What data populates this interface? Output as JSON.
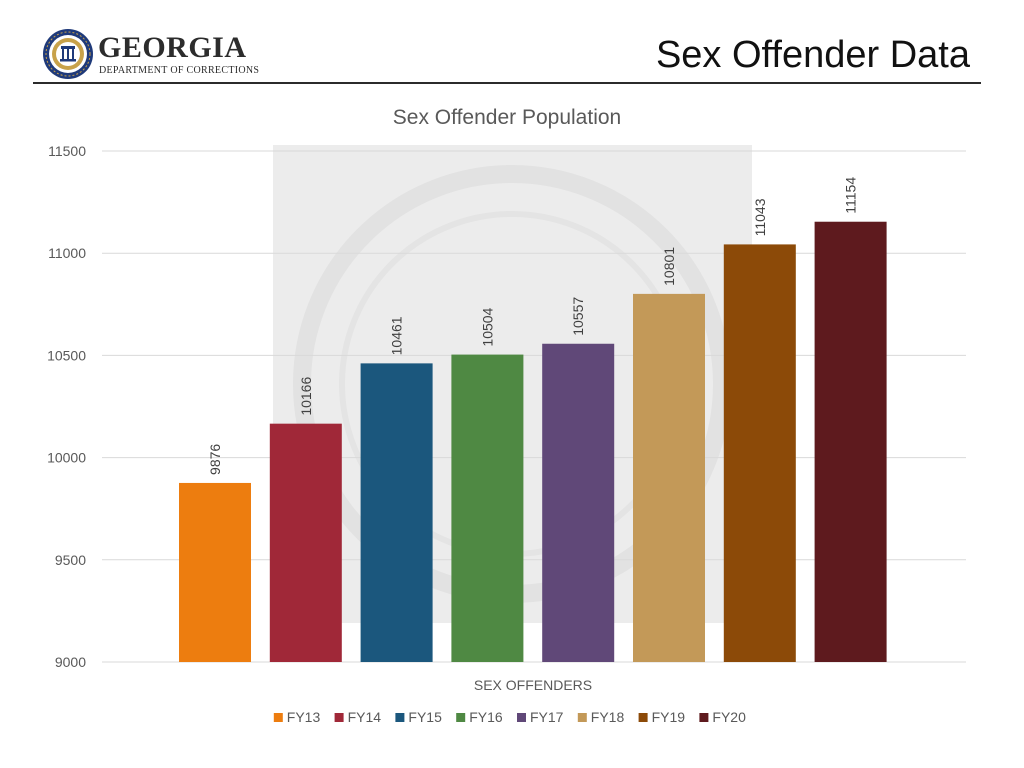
{
  "header": {
    "org_name": "GEORGIA",
    "org_subtitle": "DEPARTMENT OF CORRECTIONS",
    "page_title": "Sex Offender Data"
  },
  "chart_data": {
    "type": "bar",
    "title": "Sex Offender Population",
    "xlabel": "SEX OFFENDERS",
    "ylabel": "",
    "ylim": [
      9000,
      11500
    ],
    "yticks": [
      9000,
      9500,
      10000,
      10500,
      11000,
      11500
    ],
    "categories": [
      "SEX OFFENDERS"
    ],
    "series": [
      {
        "name": "FY13",
        "value": 9876,
        "color": "#ED7D0F"
      },
      {
        "name": "FY14",
        "value": 10166,
        "color": "#A02838"
      },
      {
        "name": "FY15",
        "value": 10461,
        "color": "#1B577D"
      },
      {
        "name": "FY16",
        "value": 10504,
        "color": "#4F8943"
      },
      {
        "name": "FY17",
        "value": 10557,
        "color": "#604878"
      },
      {
        "name": "FY18",
        "value": 10801,
        "color": "#C39958"
      },
      {
        "name": "FY19",
        "value": 11043,
        "color": "#8C4A08"
      },
      {
        "name": "FY20",
        "value": 11154,
        "color": "#5E1A1E"
      }
    ],
    "grid": true,
    "legend": "bottom",
    "data_labels": "rotated-above-bars"
  }
}
